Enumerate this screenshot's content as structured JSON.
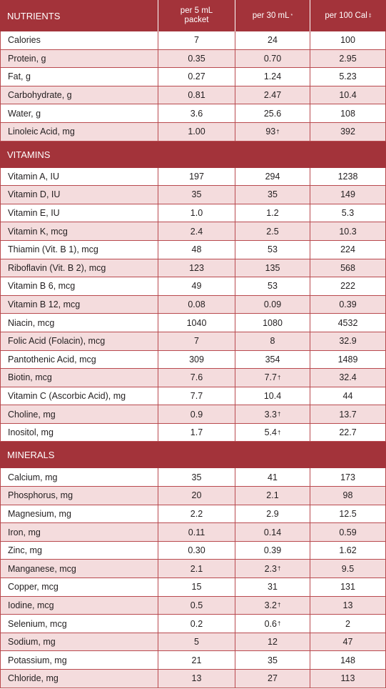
{
  "header": {
    "nutrients_label": "NUTRIENTS",
    "col1_label": "per 5 mL packet",
    "col2_label": "per 30 mL",
    "col2_mark": "*",
    "col3_label": "per 100 Cal",
    "col3_mark": "‡"
  },
  "sections": [
    {
      "title": "",
      "rows": [
        {
          "name": "Calories",
          "v1": "7",
          "v2": "24",
          "v3": "100"
        },
        {
          "name": "Protein, g",
          "v1": "0.35",
          "v2": "0.70",
          "v3": "2.95"
        },
        {
          "name": "Fat, g",
          "v1": "0.27",
          "v2": "1.24",
          "v3": "5.23"
        },
        {
          "name": "Carbohydrate, g",
          "v1": "0.81",
          "v2": "2.47",
          "v3": "10.4"
        },
        {
          "name": "Water, g",
          "v1": "3.6",
          "v2": "25.6",
          "v3": "108"
        },
        {
          "name": "Linoleic Acid, mg",
          "v1": "1.00",
          "v2": "93",
          "v2_mark": "†",
          "v3": "392"
        }
      ]
    },
    {
      "title": "VITAMINS",
      "rows": [
        {
          "name": "Vitamin A,  IU",
          "v1": "197",
          "v2": "294",
          "v3": "1238"
        },
        {
          "name": "Vitamin D,  IU",
          "v1": "35",
          "v2": "35",
          "v3": "149"
        },
        {
          "name": "Vitamin E,  IU",
          "v1": "1.0",
          "v2": "1.2",
          "v3": "5.3"
        },
        {
          "name": "Vitamin K, mcg",
          "v1": "2.4",
          "v2": "2.5",
          "v3": "10.3"
        },
        {
          "name": "Thiamin (Vit. B 1), mcg",
          "v1": "48",
          "v2": "53",
          "v3": "224"
        },
        {
          "name": "Riboflavin (Vit. B 2), mcg",
          "v1": "123",
          "v2": "135",
          "v3": "568"
        },
        {
          "name": "Vitamin B 6, mcg",
          "v1": "49",
          "v2": "53",
          "v3": "222"
        },
        {
          "name": "Vitamin B 12, mcg",
          "v1": "0.08",
          "v2": "0.09",
          "v3": "0.39"
        },
        {
          "name": "Niacin, mcg",
          "v1": "1040",
          "v2": "1080",
          "v3": "4532"
        },
        {
          "name": "Folic Acid (Folacin), mcg",
          "v1": "7",
          "v2": "8",
          "v3": "32.9"
        },
        {
          "name": "Pantothenic Acid, mcg",
          "v1": "309",
          "v2": "354",
          "v3": "1489"
        },
        {
          "name": "Biotin, mcg",
          "v1": "7.6",
          "v2": "7.7",
          "v2_mark": "†",
          "v3": "32.4"
        },
        {
          "name": "Vitamin C (Ascorbic Acid), mg",
          "v1": "7.7",
          "v2": "10.4",
          "v3": "44"
        },
        {
          "name": "Choline, mg",
          "v1": "0.9",
          "v2": "3.3",
          "v2_mark": "†",
          "v3": "13.7"
        },
        {
          "name": "Inositol, mg",
          "v1": "1.7",
          "v2": "5.4",
          "v2_mark": "†",
          "v3": "22.7"
        }
      ]
    },
    {
      "title": "MINERALS",
      "rows": [
        {
          "name": "Calcium, mg",
          "v1": "35",
          "v2": "41",
          "v3": "173"
        },
        {
          "name": "Phosphorus, mg",
          "v1": "20",
          "v2": "2.1",
          "v3": "98"
        },
        {
          "name": "Magnesium, mg",
          "v1": "2.2",
          "v2": "2.9",
          "v3": "12.5"
        },
        {
          "name": "Iron, mg",
          "v1": "0.11",
          "v2": "0.14",
          "v3": "0.59"
        },
        {
          "name": "Zinc, mg",
          "v1": "0.30",
          "v2": "0.39",
          "v3": "1.62"
        },
        {
          "name": "Manganese, mcg",
          "v1": "2.1",
          "v2": "2.3",
          "v2_mark": "†",
          "v3": "9.5"
        },
        {
          "name": "Copper, mcg",
          "v1": "15",
          "v2": "31",
          "v3": "131"
        },
        {
          "name": "Iodine, mcg",
          "v1": "0.5",
          "v2": "3.2",
          "v2_mark": "†",
          "v3": "13"
        },
        {
          "name": "Selenium, mcg",
          "v1": "0.2",
          "v2": "0.6",
          "v2_mark": "†",
          "v3": "2"
        },
        {
          "name": "Sodium, mg",
          "v1": "5",
          "v2": "12",
          "v3": "47"
        },
        {
          "name": "Potassium, mg",
          "v1": "21",
          "v2": "35",
          "v3": "148"
        },
        {
          "name": "Chloride, mg",
          "v1": "13",
          "v2": "27",
          "v3": "113"
        }
      ]
    }
  ],
  "colors": {
    "accent": "#a3333a",
    "stripe": "#f4dcdd",
    "border": "#b94a4f"
  }
}
